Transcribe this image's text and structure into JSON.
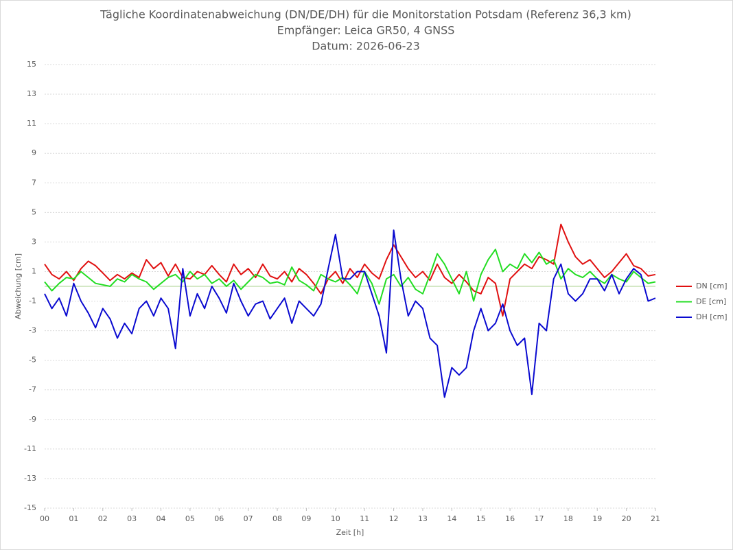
{
  "chart_data": {
    "type": "line",
    "title": "Tägliche Koordinatenabweichung (DN/DE/DH) für die Monitorstation Potsdam (Referenz 36,3 km)",
    "subtitle": [
      "Empfänger: Leica GR50, 4 GNSS",
      "Datum: 2026-06-23"
    ],
    "x_label": "Zeit [h]",
    "y_label": "Abweichung [cm]",
    "x": [
      0,
      0.25,
      0.5,
      0.75,
      1,
      1.25,
      1.5,
      1.75,
      2,
      2.25,
      2.5,
      2.75,
      3,
      3.25,
      3.5,
      3.75,
      4,
      4.25,
      4.5,
      4.75,
      5,
      5.25,
      5.5,
      5.75,
      6,
      6.25,
      6.5,
      6.75,
      7,
      7.25,
      7.5,
      7.75,
      8,
      8.25,
      8.5,
      8.75,
      9,
      9.25,
      9.5,
      9.75,
      10,
      10.25,
      10.5,
      10.75,
      11,
      11.25,
      11.5,
      11.75,
      12,
      12.25,
      12.5,
      12.75,
      13,
      13.25,
      13.5,
      13.75,
      14,
      14.25,
      14.5,
      14.75,
      15,
      15.25,
      15.5,
      15.75,
      16,
      16.25,
      16.5,
      16.75,
      17,
      17.25,
      17.5,
      17.75,
      18,
      18.25,
      18.5,
      18.75,
      19,
      19.25,
      19.5,
      19.75,
      20,
      20.25,
      20.5,
      20.75,
      21
    ],
    "series": [
      {
        "name": "DN [cm]",
        "color": "#e01010",
        "values": [
          1.5,
          0.8,
          0.5,
          1.0,
          0.4,
          1.2,
          1.7,
          1.4,
          0.9,
          0.4,
          0.8,
          0.5,
          0.9,
          0.6,
          1.8,
          1.2,
          1.6,
          0.7,
          1.5,
          0.6,
          0.5,
          1.0,
          0.8,
          1.4,
          0.8,
          0.3,
          1.5,
          0.8,
          1.2,
          0.6,
          1.5,
          0.7,
          0.5,
          1.0,
          0.3,
          1.2,
          0.8,
          0.2,
          -0.5,
          0.5,
          1.0,
          0.2,
          1.2,
          0.6,
          1.5,
          0.9,
          0.5,
          1.8,
          2.8,
          2.0,
          1.2,
          0.6,
          1.0,
          0.4,
          1.5,
          0.6,
          0.2,
          0.8,
          0.3,
          -0.3,
          -0.5,
          0.6,
          0.2,
          -2.0,
          0.5,
          1.0,
          1.5,
          1.2,
          2.0,
          1.8,
          1.5,
          4.2,
          3.0,
          2.0,
          1.5,
          1.8,
          1.2,
          0.6,
          1.0,
          1.6,
          2.2,
          1.4,
          1.2,
          0.7,
          0.8
        ]
      },
      {
        "name": "DE [cm]",
        "color": "#22dd22",
        "values": [
          0.3,
          -0.3,
          0.2,
          0.6,
          0.5,
          1.0,
          0.6,
          0.2,
          0.1,
          0.0,
          0.5,
          0.3,
          0.8,
          0.5,
          0.3,
          -0.2,
          0.2,
          0.6,
          0.8,
          0.3,
          1.0,
          0.5,
          0.8,
          0.2,
          0.5,
          0.0,
          0.4,
          -0.2,
          0.3,
          0.8,
          0.6,
          0.2,
          0.3,
          0.1,
          1.3,
          0.4,
          0.1,
          -0.3,
          0.8,
          0.5,
          0.3,
          0.6,
          0.1,
          -0.5,
          1.0,
          0.2,
          -1.2,
          0.5,
          0.8,
          0.0,
          0.6,
          -0.2,
          -0.5,
          0.8,
          2.2,
          1.5,
          0.5,
          -0.5,
          1.0,
          -1.0,
          0.8,
          1.8,
          2.5,
          1.0,
          1.5,
          1.2,
          2.2,
          1.6,
          2.3,
          1.5,
          1.8,
          0.5,
          1.2,
          0.8,
          0.6,
          1.0,
          0.5,
          0.2,
          0.8,
          0.5,
          0.3,
          1.0,
          0.6,
          0.2,
          0.3
        ]
      },
      {
        "name": "DH [cm]",
        "color": "#0a0ad0",
        "values": [
          -0.5,
          -1.5,
          -0.8,
          -2.0,
          0.2,
          -1.0,
          -1.8,
          -2.8,
          -1.5,
          -2.2,
          -3.5,
          -2.5,
          -3.2,
          -1.5,
          -1.0,
          -2.0,
          -0.8,
          -1.5,
          -4.2,
          1.2,
          -2.0,
          -0.5,
          -1.5,
          0.0,
          -0.8,
          -1.8,
          0.2,
          -1.0,
          -2.0,
          -1.2,
          -1.0,
          -2.2,
          -1.5,
          -0.8,
          -2.5,
          -1.0,
          -1.5,
          -2.0,
          -1.2,
          1.2,
          3.5,
          0.5,
          0.5,
          1.0,
          1.0,
          -0.5,
          -2.0,
          -4.5,
          3.8,
          0.5,
          -2.0,
          -1.0,
          -1.5,
          -3.5,
          -4.0,
          -7.5,
          -5.5,
          -6.0,
          -5.5,
          -3.0,
          -1.5,
          -3.0,
          -2.5,
          -1.2,
          -3.0,
          -4.0,
          -3.5,
          -7.3,
          -2.5,
          -3.0,
          0.5,
          1.5,
          -0.5,
          -1.0,
          -0.5,
          0.5,
          0.5,
          -0.3,
          0.8,
          -0.5,
          0.5,
          1.2,
          0.8,
          -1.0,
          -0.8
        ]
      }
    ],
    "xlim": [
      0,
      21
    ],
    "xticks": [
      {
        "value": 0,
        "label": "00"
      },
      {
        "value": 1,
        "label": "01"
      },
      {
        "value": 2,
        "label": "02"
      },
      {
        "value": 3,
        "label": "03"
      },
      {
        "value": 4,
        "label": "04"
      },
      {
        "value": 5,
        "label": "05"
      },
      {
        "value": 6,
        "label": "06"
      },
      {
        "value": 7,
        "label": "07"
      },
      {
        "value": 8,
        "label": "08"
      },
      {
        "value": 9,
        "label": "09"
      },
      10,
      11,
      12,
      13,
      14,
      15,
      16,
      17,
      18,
      19,
      20,
      21
    ],
    "ylim": [
      -15,
      15
    ],
    "yticks": [
      -15,
      -13,
      -11,
      -9,
      -7,
      -5,
      -3,
      -1,
      1,
      3,
      5,
      7,
      9,
      11,
      13,
      15
    ],
    "grid": true,
    "legend": "right"
  }
}
